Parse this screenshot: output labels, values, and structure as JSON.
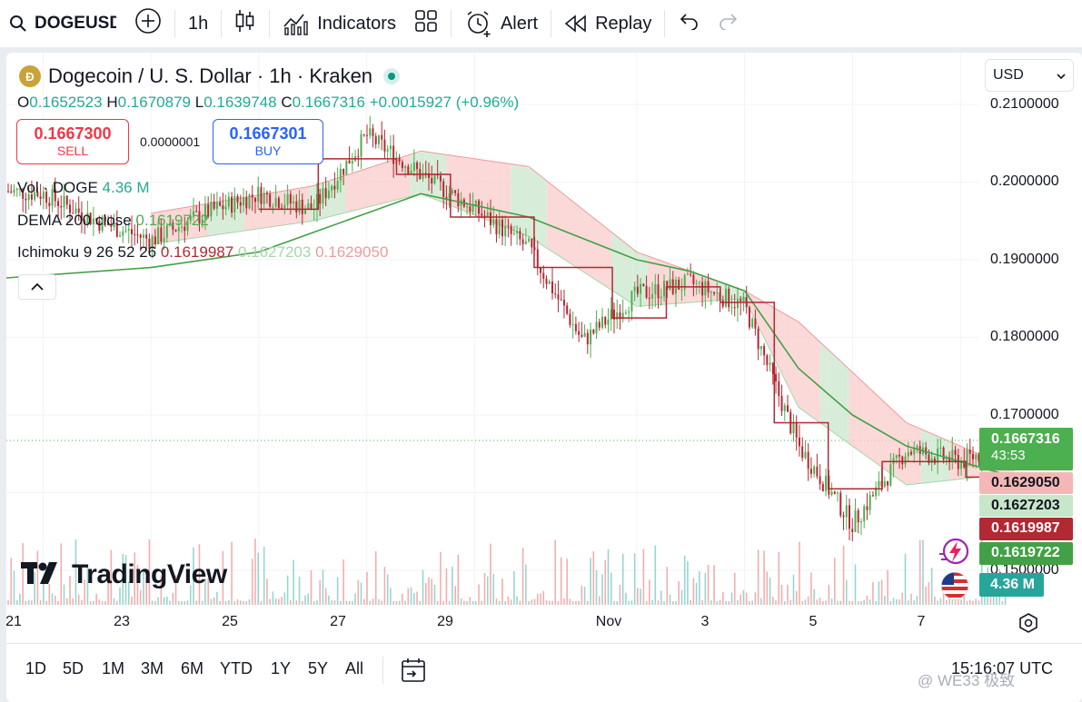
{
  "toolbar": {
    "symbol": "DOGEUSD",
    "interval": "1h",
    "indicators_label": "Indicators",
    "alert_label": "Alert",
    "replay_label": "Replay"
  },
  "legend": {
    "title": "Dogecoin / U. S. Dollar · 1h · Kraken",
    "o_label": "O",
    "o_value": "0.1652523",
    "h_label": "H",
    "h_value": "0.1670879",
    "l_label": "L",
    "l_value": "0.1639748",
    "c_label": "C",
    "c_value": "0.1667316",
    "change": "+0.0015927 (+0.96%)"
  },
  "trade": {
    "sell_price": "0.1667300",
    "sell_label": "SELL",
    "spread": "0.0000001",
    "buy_price": "0.1667301",
    "buy_label": "BUY"
  },
  "indicators": {
    "vol_name": "Vol · DOGE",
    "vol_value": "4.36 M",
    "dema_name": "DEMA 200 close",
    "dema_value": "0.1619722",
    "ichimoku_name": "Ichimoku 9 26 52 26",
    "ichimoku_tenkan": "0.1619987",
    "ichimoku_kijun": "0.1627203",
    "ichimoku_span": "0.1629050"
  },
  "currency": "USD",
  "price_tags": {
    "last": "0.1667316",
    "countdown": "43:53",
    "leading_span_b": "0.1629050",
    "leading_span_a": "0.1627203",
    "tenkan": "0.1619987",
    "dema": "0.1619722",
    "volume": "4.36 M"
  },
  "bottom": {
    "ranges": [
      "1D",
      "5D",
      "1M",
      "3M",
      "6M",
      "YTD",
      "1Y",
      "5Y",
      "All"
    ],
    "clock": "15:16:07 UTC"
  },
  "branding": {
    "logo_text": "TradingView"
  },
  "watermark": "@ WE33 极致",
  "colors": {
    "up": "#4caf50",
    "down": "#b22833",
    "dema": "#43a047",
    "kijun": "#b22833",
    "cloud_bull": "#c8e6c9",
    "cloud_bear": "#f8c9c8"
  },
  "chart_data": {
    "type": "candlestick",
    "title": "Dogecoin / U. S. Dollar · 1h · Kraken",
    "x_tick_labels": [
      "21",
      "23",
      "25",
      "27",
      "29",
      "Nov",
      "3",
      "5",
      "7"
    ],
    "y_tick_labels": [
      "0.2100000",
      "0.2000000",
      "0.1900000",
      "0.1800000",
      "0.1700000",
      "0.1500000"
    ],
    "ylim": [
      0.148,
      0.212
    ],
    "price_path": [
      {
        "x": "Oct 20",
        "y": 0.199
      },
      {
        "x": "Oct 21",
        "y": 0.1985
      },
      {
        "x": "Oct 22",
        "y": 0.195
      },
      {
        "x": "Oct 23",
        "y": 0.1925
      },
      {
        "x": "Oct 24",
        "y": 0.196
      },
      {
        "x": "Oct 25",
        "y": 0.1985
      },
      {
        "x": "Oct 26",
        "y": 0.1965
      },
      {
        "x": "Oct 27",
        "y": 0.206
      },
      {
        "x": "Oct 28",
        "y": 0.201
      },
      {
        "x": "Oct 29",
        "y": 0.1965
      },
      {
        "x": "Oct 30",
        "y": 0.1915
      },
      {
        "x": "Oct 31",
        "y": 0.1795
      },
      {
        "x": "Nov 1",
        "y": 0.1855
      },
      {
        "x": "Nov 2",
        "y": 0.187
      },
      {
        "x": "Nov 3",
        "y": 0.184
      },
      {
        "x": "Nov 4",
        "y": 0.166
      },
      {
        "x": "Nov 5",
        "y": 0.156
      },
      {
        "x": "Nov 6",
        "y": 0.1655
      },
      {
        "x": "Nov 7",
        "y": 0.164
      },
      {
        "x": "Nov 8",
        "y": 0.1667
      }
    ],
    "dema_200": [
      {
        "x": "Oct 20",
        "y": 0.1875
      },
      {
        "x": "Oct 23",
        "y": 0.189
      },
      {
        "x": "Oct 25",
        "y": 0.191
      },
      {
        "x": "Oct 27",
        "y": 0.196
      },
      {
        "x": "Oct 28",
        "y": 0.1985
      },
      {
        "x": "Oct 30",
        "y": 0.1955
      },
      {
        "x": "Nov 1",
        "y": 0.19
      },
      {
        "x": "Nov 2",
        "y": 0.1885
      },
      {
        "x": "Nov 3",
        "y": 0.186
      },
      {
        "x": "Nov 4",
        "y": 0.176
      },
      {
        "x": "Nov 5",
        "y": 0.17
      },
      {
        "x": "Nov 6",
        "y": 0.166
      },
      {
        "x": "Nov 8",
        "y": 0.162
      }
    ],
    "kijun": [
      {
        "x": "Oct 25",
        "y": 0.1965
      },
      {
        "x": "Oct 27",
        "y": 0.203
      },
      {
        "x": "Oct 28",
        "y": 0.201
      },
      {
        "x": "Oct 29",
        "y": 0.1955
      },
      {
        "x": "Oct 31",
        "y": 0.189
      },
      {
        "x": "Nov 1",
        "y": 0.1825
      },
      {
        "x": "Nov 2",
        "y": 0.1865
      },
      {
        "x": "Nov 3",
        "y": 0.1845
      },
      {
        "x": "Nov 4",
        "y": 0.169
      },
      {
        "x": "Nov 5",
        "y": 0.1605
      },
      {
        "x": "Nov 6",
        "y": 0.164
      },
      {
        "x": "Nov 8",
        "y": 0.162
      }
    ],
    "cloud_upper": [
      {
        "x": "Oct 23",
        "y": 0.196
      },
      {
        "x": "Oct 26",
        "y": 0.1995
      },
      {
        "x": "Oct 28",
        "y": 0.204
      },
      {
        "x": "Oct 30",
        "y": 0.202
      },
      {
        "x": "Nov 1",
        "y": 0.191
      },
      {
        "x": "Nov 3",
        "y": 0.186
      },
      {
        "x": "Nov 4",
        "y": 0.182
      },
      {
        "x": "Nov 6",
        "y": 0.169
      },
      {
        "x": "Nov 8",
        "y": 0.163
      }
    ],
    "cloud_lower": [
      {
        "x": "Oct 23",
        "y": 0.192
      },
      {
        "x": "Oct 26",
        "y": 0.195
      },
      {
        "x": "Oct 28",
        "y": 0.1985
      },
      {
        "x": "Oct 30",
        "y": 0.193
      },
      {
        "x": "Nov 1",
        "y": 0.184
      },
      {
        "x": "Nov 3",
        "y": 0.185
      },
      {
        "x": "Nov 4",
        "y": 0.171
      },
      {
        "x": "Nov 6",
        "y": 0.161
      },
      {
        "x": "Nov 8",
        "y": 0.1625
      }
    ],
    "last_price": 0.1667316
  }
}
